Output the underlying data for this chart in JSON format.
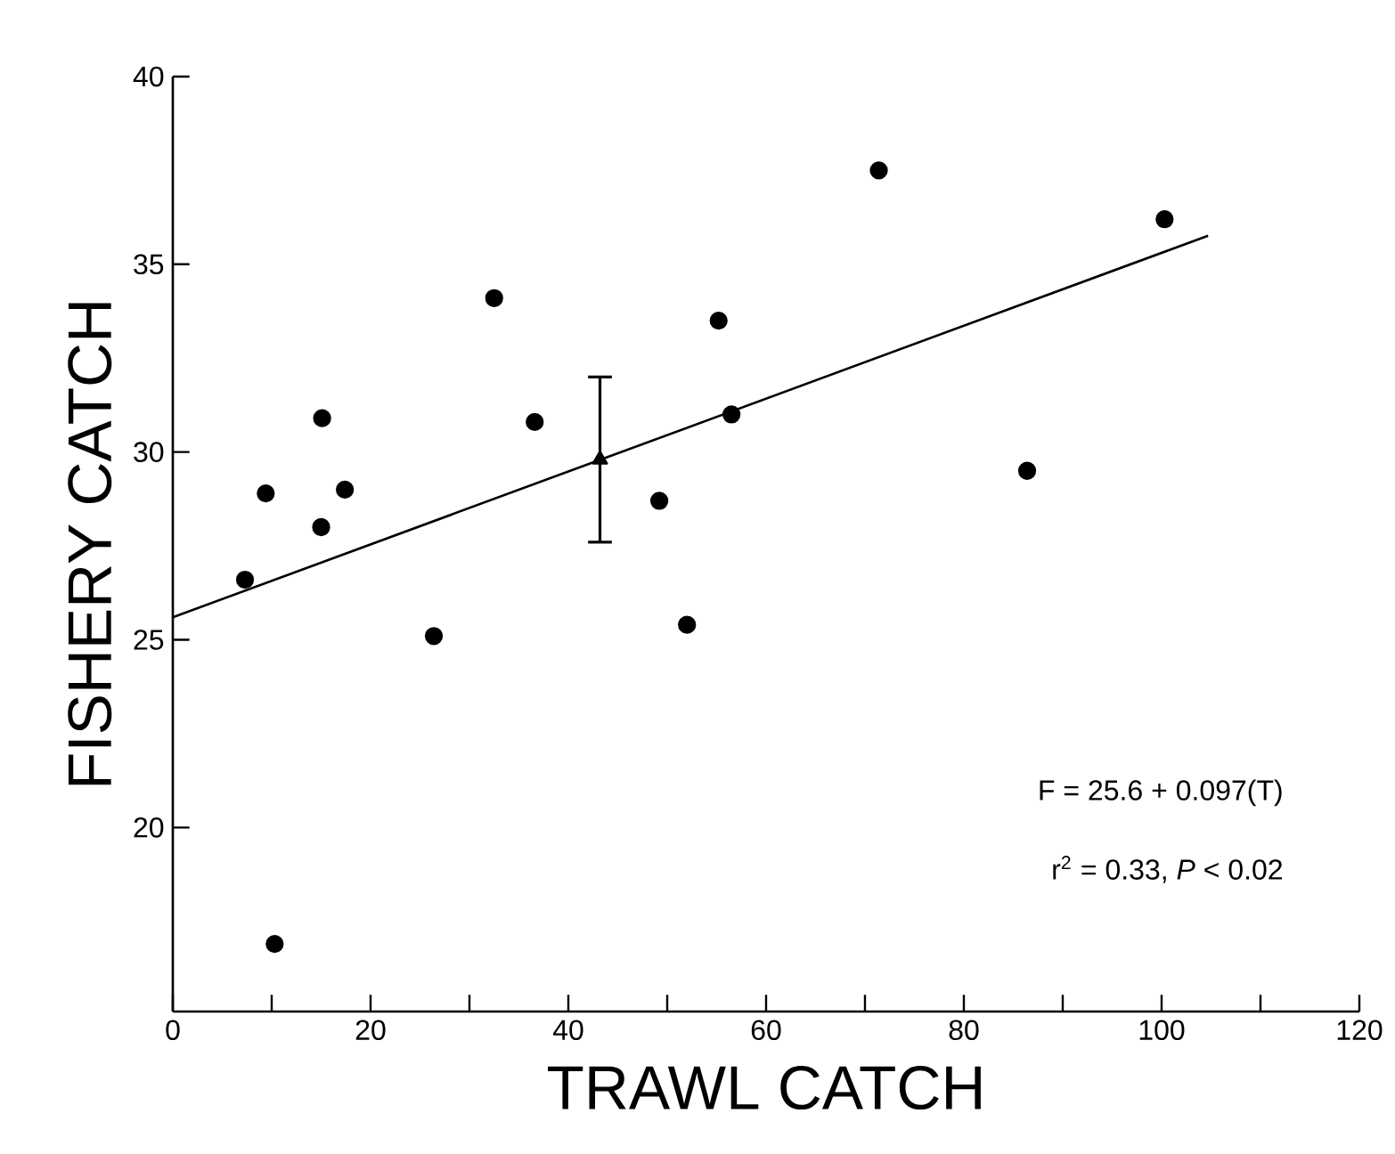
{
  "chart_data": {
    "type": "scatter",
    "xlabel": "TRAWL CATCH",
    "ylabel": "FISHERY CATCH",
    "xlim": [
      0,
      120
    ],
    "ylim": [
      15.1,
      40
    ],
    "xticks": [
      0,
      {
        "value": 10,
        "label": null
      },
      20,
      {
        "value": 30,
        "label": null
      },
      40,
      {
        "value": 50,
        "label": null
      },
      60,
      {
        "value": 70,
        "label": null
      },
      80,
      {
        "value": 90,
        "label": null
      },
      100,
      {
        "value": 110,
        "label": null
      },
      120
    ],
    "yticks": [
      20,
      25,
      30,
      35,
      40
    ],
    "series": [
      {
        "marker": "circle",
        "color": "#000000",
        "x": [
          7.3,
          9.4,
          15.1,
          15.0,
          17.4,
          32.5,
          36.6,
          49.2,
          55.2,
          56.5,
          71.4,
          100.3,
          86.4,
          10.3,
          26.4,
          52.0
        ],
        "values": [
          26.6,
          28.9,
          30.9,
          28.0,
          29.0,
          34.1,
          30.8,
          28.7,
          33.5,
          31.0,
          37.5,
          36.2,
          29.5,
          16.9,
          25.1,
          25.4
        ]
      },
      {
        "type": "scatter",
        "marker": "triangle",
        "color": "#000000",
        "x": [
          43.2
        ],
        "values": [
          29.8
        ],
        "errors": [
          2.2
        ]
      },
      {
        "type": "line",
        "marker": "none",
        "line_style": "solid",
        "color": "#000000",
        "x": [
          0,
          104.7
        ],
        "values": [
          25.6,
          35.76
        ]
      }
    ],
    "annotations": [
      "F = 25.6 + 0.097(T)",
      "r$^{2}$ = 0.33, *P* < 0.02"
    ]
  }
}
